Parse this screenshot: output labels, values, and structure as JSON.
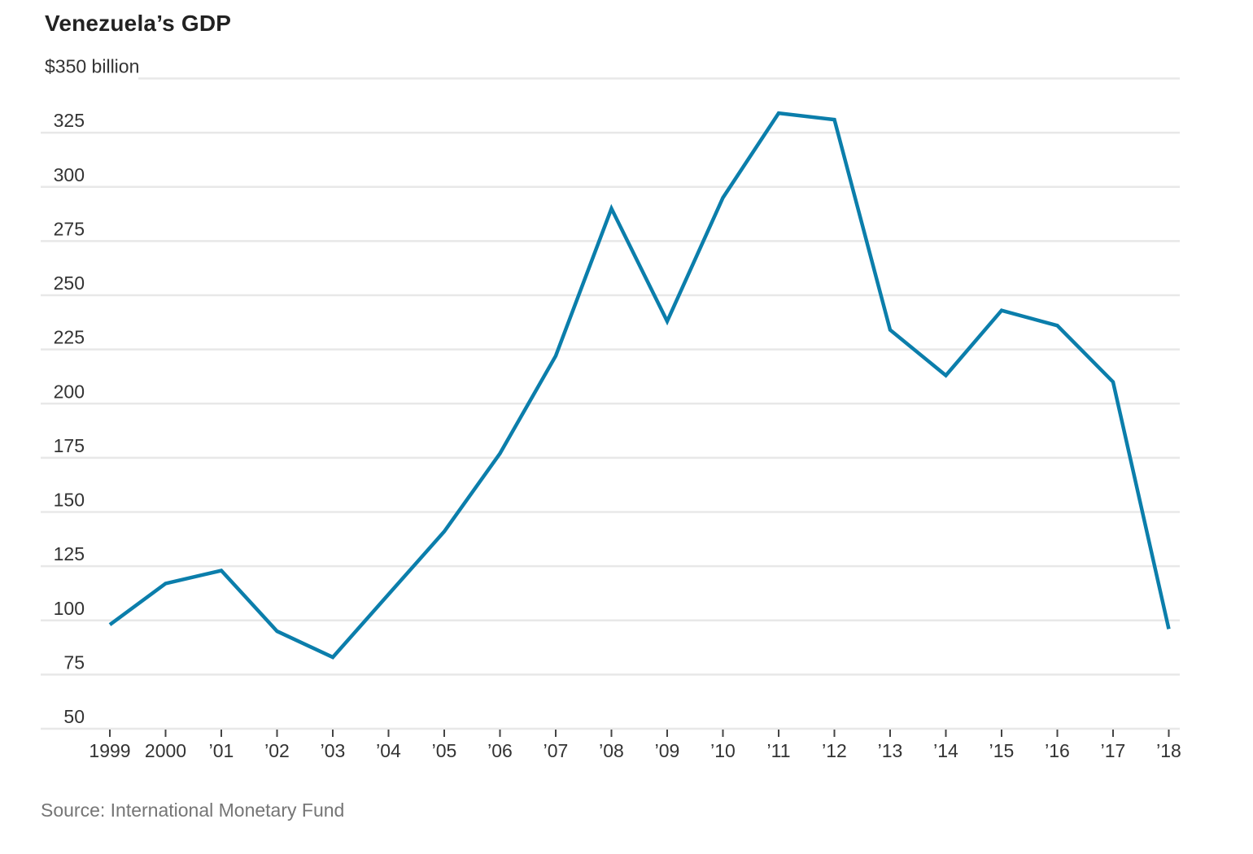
{
  "page": {
    "title": "Venezuela’s GDP",
    "source": "Source: International Monetary Fund"
  },
  "chart_data": {
    "type": "line",
    "title": "Venezuela’s GDP",
    "source": "Source: International Monetary Fund",
    "legend": "none",
    "grid": true,
    "colors": {
      "line": "#0b7eab",
      "grid": "#e8e8e8",
      "tick_mark": "#444444",
      "tick_text": "#333333"
    },
    "y_axis": {
      "top_label": "$350 billion",
      "ticks": [
        350,
        325,
        300,
        275,
        250,
        225,
        200,
        175,
        150,
        125,
        100,
        75,
        50
      ],
      "ylim": [
        50,
        350
      ]
    },
    "x_axis": {
      "tick_labels": [
        "1999",
        "2000",
        "’01",
        "’02",
        "’03",
        "’04",
        "’05",
        "’06",
        "’07",
        "’08",
        "’09",
        "’10",
        "’11",
        "’12",
        "’13",
        "’14",
        "’15",
        "’16",
        "’17",
        "’18"
      ]
    },
    "series": [
      {
        "x": [
          1999,
          2000,
          2001,
          2002,
          2003,
          2004,
          2005,
          2006,
          2007,
          2008,
          2009,
          2010,
          2011,
          2012,
          2013,
          2014,
          2015,
          2016,
          2017,
          2018
        ],
        "values": [
          98,
          117,
          123,
          95,
          83,
          112,
          141,
          177,
          222,
          290,
          238,
          295,
          334,
          331,
          234,
          213,
          243,
          236,
          210,
          96
        ],
        "color": "#0b7eab"
      }
    ]
  }
}
